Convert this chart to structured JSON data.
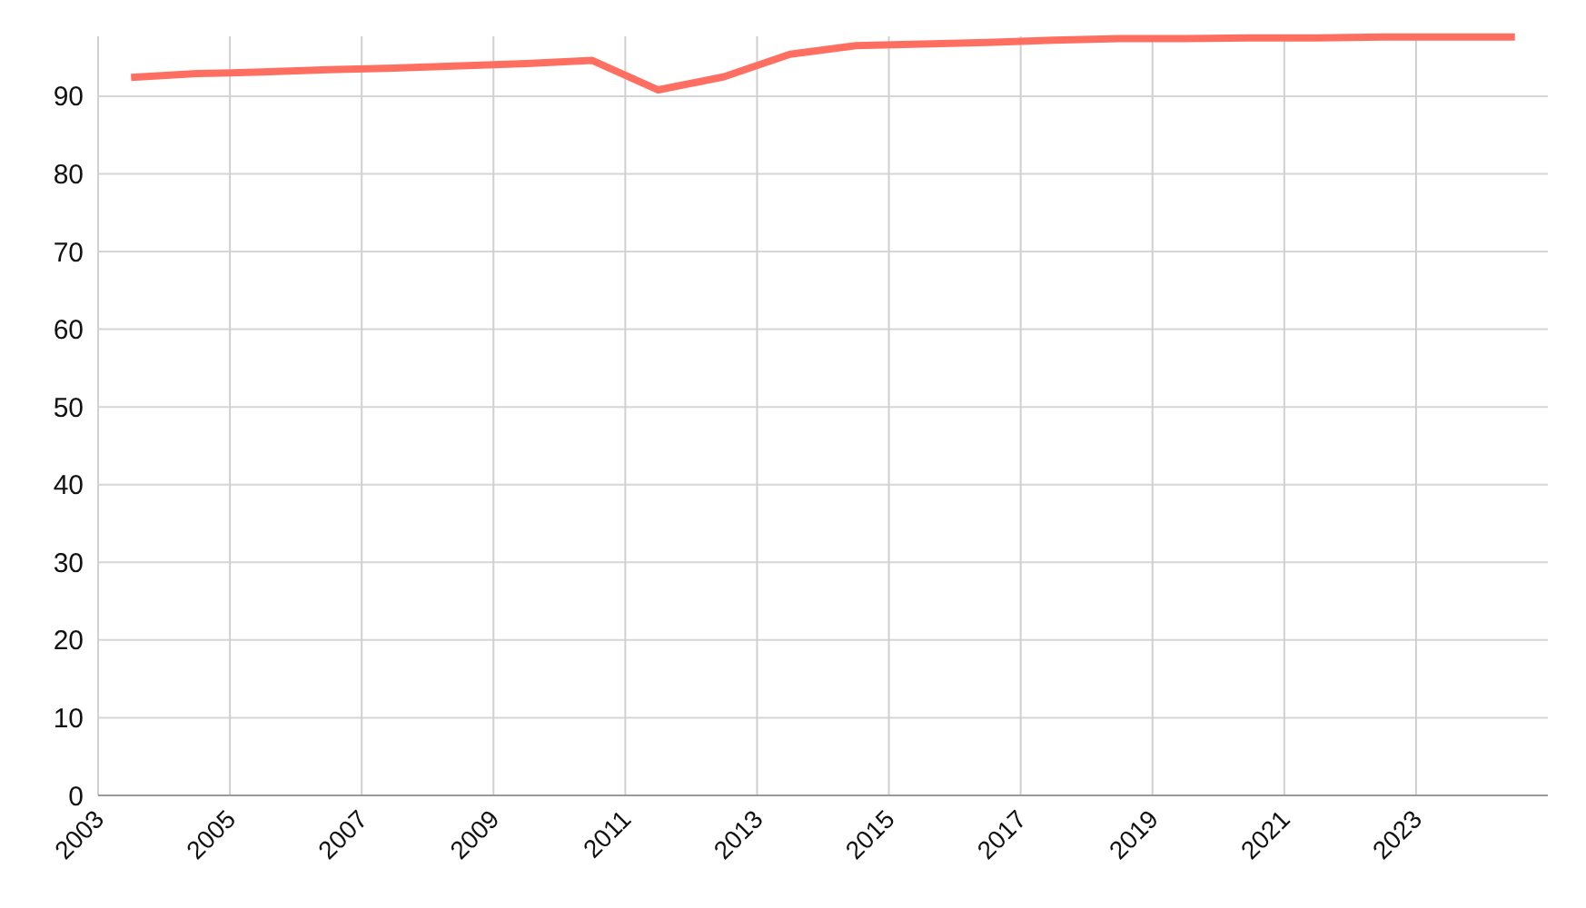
{
  "chart_data": {
    "type": "line",
    "x": [
      2003.5,
      2004.5,
      2005.5,
      2006.5,
      2007.5,
      2008.5,
      2009.5,
      2010.5,
      2011.5,
      2012.5,
      2013.5,
      2014.5,
      2015.5,
      2016.5,
      2017.5,
      2018.5,
      2019.5,
      2020.5,
      2021.5,
      2022.5,
      2023.5,
      2024.5
    ],
    "series": [
      {
        "color": "#ff6f61",
        "values": [
          92.4,
          92.9,
          93.1,
          93.4,
          93.6,
          93.9,
          94.2,
          94.6,
          90.8,
          92.5,
          95.4,
          96.5,
          96.7,
          96.9,
          97.2,
          97.4,
          97.4,
          97.5,
          97.5,
          97.6,
          97.6,
          97.6
        ]
      }
    ],
    "xlim": [
      2003,
      2025
    ],
    "xticks": [
      2003,
      2005,
      2007,
      2009,
      2011,
      2013,
      2015,
      2017,
      2019,
      2021,
      2023
    ],
    "ylim": [
      0,
      97.7
    ],
    "yticks": [
      0,
      10,
      20,
      30,
      40,
      50,
      60,
      70,
      80,
      90
    ],
    "grid": true,
    "line_style": "solid",
    "marker": "none"
  }
}
